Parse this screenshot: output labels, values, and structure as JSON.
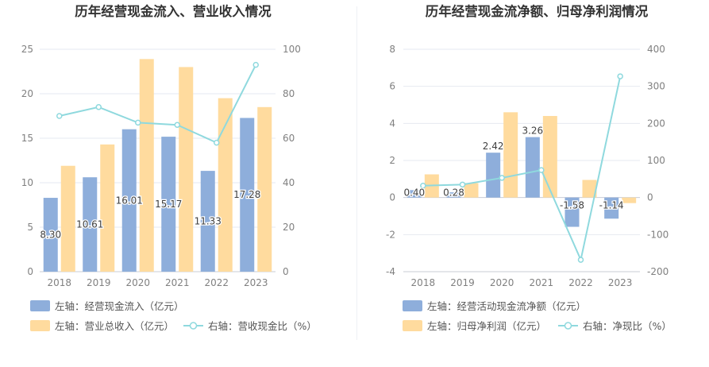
{
  "chart_data": [
    {
      "type": "bar",
      "title": "历年经营现金流入、营业收入情况",
      "categories": [
        "2018",
        "2019",
        "2020",
        "2021",
        "2022",
        "2023"
      ],
      "ylim_left": [
        0,
        25
      ],
      "yticks_left": [
        "0",
        "5",
        "10",
        "15",
        "20",
        "25"
      ],
      "ylim_right": [
        0,
        100
      ],
      "yticks_right": [
        "0",
        "20",
        "40",
        "60",
        "80",
        "100"
      ],
      "series": [
        {
          "name": "左轴：经营现金流入（亿元）",
          "kind": "bar",
          "axis": "left",
          "color": "#8eaedb",
          "values": [
            8.3,
            10.61,
            16.01,
            15.17,
            11.33,
            17.28
          ],
          "labels": [
            "8.30",
            "10.61",
            "16.01",
            "15.17",
            "11.33",
            "17.28"
          ]
        },
        {
          "name": "左轴：营业总收入（亿元）",
          "kind": "bar",
          "axis": "left",
          "color": "#ffdb9e",
          "values": [
            11.9,
            14.3,
            23.9,
            23.0,
            19.5,
            18.5
          ]
        },
        {
          "name": "右轴：营收现金比（%）",
          "kind": "line",
          "axis": "right",
          "color": "#8fd9de",
          "values": [
            70,
            74,
            67,
            66,
            58,
            93
          ]
        }
      ]
    },
    {
      "type": "bar",
      "title": "历年经营现金流净额、归母净利润情况",
      "categories": [
        "2018",
        "2019",
        "2020",
        "2021",
        "2022",
        "2023"
      ],
      "ylim_left": [
        -4,
        8
      ],
      "yticks_left": [
        "-4",
        "-2",
        "0",
        "2",
        "4",
        "6",
        "8"
      ],
      "ylim_right": [
        -200,
        400
      ],
      "yticks_right": [
        "-200",
        "-100",
        "0",
        "100",
        "200",
        "300",
        "400"
      ],
      "series": [
        {
          "name": "左轴：经营活动现金流净额（亿元）",
          "kind": "bar",
          "axis": "left",
          "color": "#8eaedb",
          "values": [
            0.4,
            0.28,
            2.42,
            3.26,
            -1.58,
            -1.14
          ],
          "labels": [
            "0.40",
            "0.28",
            "2.42",
            "3.26",
            "-1.58",
            "-1.14"
          ]
        },
        {
          "name": "左轴：归母净利润（亿元）",
          "kind": "bar",
          "axis": "left",
          "color": "#ffdb9e",
          "values": [
            1.25,
            0.78,
            4.6,
            4.4,
            0.95,
            -0.3
          ]
        },
        {
          "name": "右轴：净现比（%）",
          "kind": "line",
          "axis": "right",
          "color": "#8fd9de",
          "values": [
            32,
            35,
            53,
            74,
            -168,
            327
          ]
        }
      ]
    }
  ]
}
